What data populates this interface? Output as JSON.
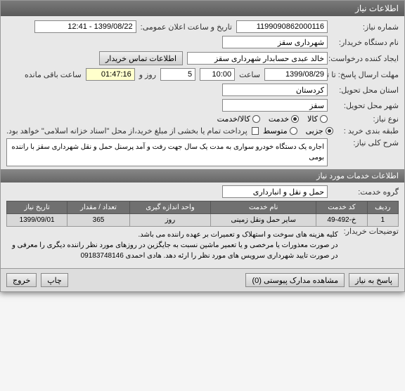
{
  "window": {
    "title": "اطلاعات نیاز"
  },
  "header": {
    "need_number_label": "شماره نیاز:",
    "need_number": "1199090862000116",
    "announce_label": "تاریخ و ساعت اعلان عمومی:",
    "announce_value": "1399/08/22 - 12:41",
    "buyer_org_label": "نام دستگاه خریدار:",
    "buyer_org": "شهرداری سقز",
    "creator_label": "ایجاد کننده درخواست:",
    "creator": "خالد عبدی حسابدار شهرداری سقز",
    "contact_btn": "اطلاعات تماس خریدار",
    "deadline_label": "مهلت ارسال پاسخ: تا تاریخ:",
    "deadline_date": "1399/08/29",
    "time_label": "ساعت",
    "deadline_time": "10:00",
    "day_count": "5",
    "day_label": "روز و",
    "remaining_time": "01:47:16",
    "remaining_label": "ساعت باقی مانده",
    "province_label": "استان محل تحویل:",
    "province": "کردستان",
    "city_label": "شهر محل تحویل:",
    "city": "سقز",
    "need_type_label": "نوع نیاز:",
    "radio_goods": "کالا",
    "radio_service": "خدمت",
    "radio_goods_service": "کالا/خدمت",
    "purchase_class_label": "طبقه بندی خرید :",
    "radio_small": "جزیی",
    "radio_medium": "متوسط",
    "payment_note": "پرداخت تمام یا بخشی از مبلغ خرید،از محل \"اسناد خزانه اسلامی\" خواهد بود.",
    "desc_label": "شرح کلی نیاز:",
    "desc_text": "اجاره یک دستگاه خودرو سواری به مدت یک سال جهت رفت و آمد پرسنل حمل و نقل شهرداری سقز با راننده بومی"
  },
  "services": {
    "section_title": "اطلاعات خدمات مورد نیاز",
    "group_label": "گروه خدمت:",
    "group_value": "حمل و نقل و انبارداری",
    "table": {
      "columns": [
        "ردیف",
        "کد خدمت",
        "نام خدمت",
        "واحد اندازه گیری",
        "تعداد / مقدار",
        "تاریخ نیاز"
      ],
      "rows": [
        [
          "1",
          "خ-492-49",
          "سایر حمل ونقل زمینی",
          "روز",
          "365",
          "1399/09/01"
        ]
      ]
    },
    "note": "کلیه هزینه های سوخت و استهلاک و تعمیرات بر عهده راننده می باشد.\nدر صورت معذورات یا مرخصی و یا تعمیر ماشین نسبت به جایگزین در روزهای مورد نظر راننده دیگری را معرفی و در صورت تایید شهرداری سرویس های مورد نظر را ارئه دهد. هادی احمدی 09183748146",
    "buyer_notes_label": "توضیحات خریدار:"
  },
  "footer": {
    "reply_btn": "پاسخ به نیاز",
    "attachments_btn": "مشاهده مدارک پیوستی (0)",
    "print_btn": "چاپ",
    "exit_btn": "خروج"
  }
}
